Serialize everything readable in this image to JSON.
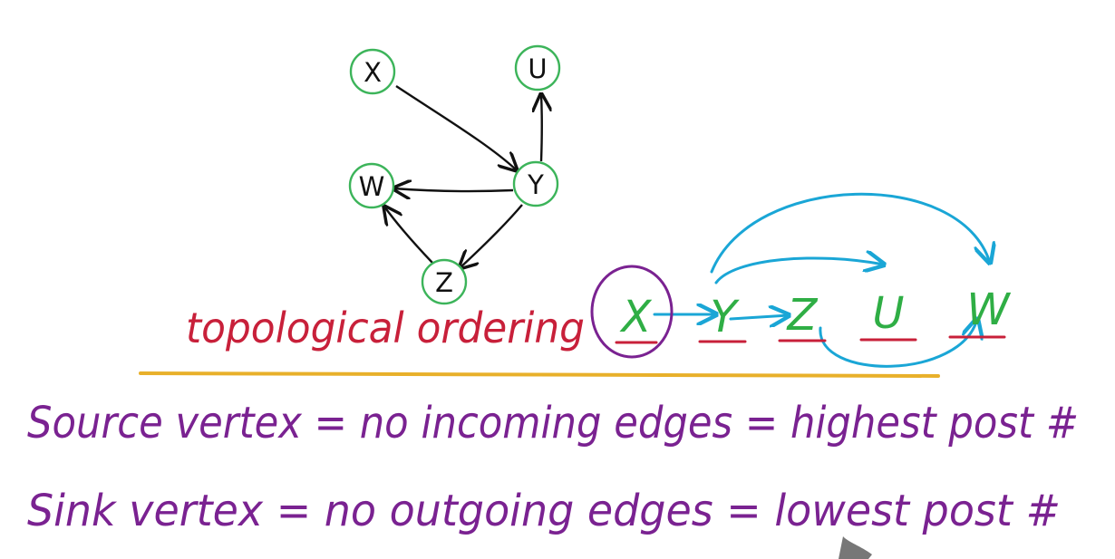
{
  "graph": {
    "nodes": [
      {
        "id": "x",
        "label": "X"
      },
      {
        "id": "u",
        "label": "U"
      },
      {
        "id": "w",
        "label": "W"
      },
      {
        "id": "y",
        "label": "Y"
      },
      {
        "id": "z",
        "label": "Z"
      }
    ],
    "edges": [
      {
        "from": "X",
        "to": "Y"
      },
      {
        "from": "Y",
        "to": "U"
      },
      {
        "from": "Y",
        "to": "W"
      },
      {
        "from": "Y",
        "to": "Z"
      },
      {
        "from": "Z",
        "to": "W"
      }
    ]
  },
  "ordering": {
    "caption": "topological ordering",
    "sequence": [
      "X",
      "Y",
      "Z",
      "U",
      "W"
    ]
  },
  "definitions": {
    "source_line": "Source vertex = no incoming edges = highest post #",
    "sink_line": "Sink vertex = no outgoing edges = lowest post #"
  },
  "colors": {
    "node_stroke": "#3cb45a",
    "edge": "#111111",
    "caption": "#c8203a",
    "sequence": "#2fae45",
    "blue_arrows": "#1aa6d6",
    "circle": "#7a2291",
    "definitions": "#7a2291",
    "divider": "#e8b02a"
  }
}
